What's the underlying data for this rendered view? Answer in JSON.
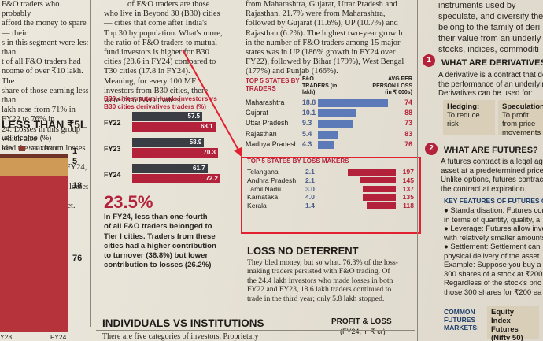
{
  "left_col": {
    "lines": [
      "F&O traders who probably",
      "afford the money to spare — their",
      "s in this segment were less than",
      "t of all F&O traders had",
      "ncome of over ₹10 lakh. The",
      "share of those earning less than",
      "lakh rose from 71% in FY22 to 76% in",
      "24. Losses in this group which also",
      "ided the maximum losses — 92.2% of",
      "their total losses in FY24, compared",
      "ith 88% in FY22 — losses in the",
      "lower income bracket."
    ],
    "heading": "LESS THAN ₹5L",
    "subheading": "ual income (%)",
    "legend_label": "5-10 lakh",
    "legend_prefix": "akh",
    "axis_values": [
      "1",
      "5",
      "18",
      "76"
    ],
    "x_labels": [
      "Y23",
      "FY24"
    ]
  },
  "mid_col": {
    "lines": [
      "who live in Beyond 30 (B30) cities",
      "— cities that come after India's",
      "Top 30 by population. What's more,",
      "the ratio of F&O traders to mutual",
      "fund investors is higher for B30",
      "cities (28.6 in FY24) compared to",
      "T30 cities (17.8 in FY24).",
      "Meaning, for every 100 MF",
      "investors from B30 cities, there",
      "were 28.6 F&O traders."
    ],
    "top_line": "of F&O traders are those",
    "chart_title_1": "B30 cities mutual funds investors vs",
    "chart_title_2": "B30 cities derivatives traders (%)",
    "big_stat": "23.5%",
    "stat_text": [
      "In FY24, less than one-fourth",
      "of all F&O traders belonged to",
      "Tier I cities. Traders from these",
      "cities had a higher contribution",
      "to turnover (36.8%) but lower",
      "contribution to losses (26.2%)"
    ]
  },
  "mf_chart": {
    "categories": [
      "FY22",
      "FY23",
      "FY24"
    ],
    "mf_values": [
      57.5,
      58.9,
      61.7
    ],
    "deriv_values": [
      68.1,
      70.3,
      72.2
    ]
  },
  "right_text": {
    "lines": [
      "from Maharashtra, Gujarat, Uttar Pradesh and",
      "Rajasthan. 21.7% were from Maharashtra,",
      "followed by Gujarat (11.6%), UP (10.7%) and",
      "Rajasthan (6.2%). The highest two-year growth",
      "in the number of F&O traders among 15 major",
      "states was in UP (186% growth in FY24 over",
      "FY22), followed by Bihar (179%), West Bengal",
      "(177%) and Punjab (166%)."
    ]
  },
  "traders_table": {
    "title": "TOP 5 STATES BY TRADERS",
    "col1": "F&O TRADERS (in lakh)",
    "col2": "AVG PER PERSON LOSS (in ₹ 000s)",
    "rows": [
      {
        "state": "Maharashtra",
        "traders": "18.8",
        "loss": "74"
      },
      {
        "state": "Gujarat",
        "traders": "10.1",
        "loss": "88"
      },
      {
        "state": "Uttar Pradesh",
        "traders": "9.3",
        "loss": "73"
      },
      {
        "state": "Rajasthan",
        "traders": "5.4",
        "loss": "83"
      },
      {
        "state": "Madhya Pradesh",
        "traders": "4.3",
        "loss": "76"
      }
    ]
  },
  "loss_table": {
    "title": "TOP 5 STATES BY LOSS MAKERS",
    "rows": [
      {
        "state": "Telangana",
        "traders": "2.1",
        "loss": "197"
      },
      {
        "state": "Andhra Pradesh",
        "traders": "2.1",
        "loss": "145"
      },
      {
        "state": "Tamil Nadu",
        "traders": "3.0",
        "loss": "137"
      },
      {
        "state": "Karnataka",
        "traders": "4.0",
        "loss": "135"
      },
      {
        "state": "Kerala",
        "traders": "1.4",
        "loss": "118"
      }
    ]
  },
  "deterrent": {
    "heading": "LOSS NO DETERRENT",
    "lines": [
      "They bled money, but so what. 76.3% of the loss-",
      "making traders persisted with F&O trading. Of",
      "the 24.4 lakh investors who made losses in both",
      "FY22 and FY23, 18.6 lakh traders continued to",
      "trade in the third year; only 5.8 lakh stopped."
    ]
  },
  "bottom": {
    "heading": "INDIVIDUALS VS INSTITUTIONS",
    "line": "There are five categories of  investors. Proprietary",
    "pl_title": "PROFIT & LOSS",
    "pl_sub": "(FY24, in ₹ cr)"
  },
  "far_right": {
    "top_lines": [
      "instruments used by",
      "speculate, and diversify the",
      "belong to the family of deri",
      "their value from an underly",
      "stocks, indices, commoditi"
    ],
    "q1_num": "1",
    "q1": "WHAT ARE DERIVATIVES?",
    "q1_lines": [
      "A derivative is a contract that de",
      "the performance of an underlyin",
      "Derivatives can be used for:"
    ],
    "hedging_title": "Hedging:",
    "hedging_text": "To reduce risk",
    "spec_title": "Speculation:",
    "spec_text": "To profit from price movements",
    "q2_num": "2",
    "q2": "WHAT ARE FUTURES?",
    "q2_lines": [
      "A futures contract is a legal ag",
      "asset at a predetermined price",
      "Unlike options, futures contrac",
      "the contract at expiration."
    ],
    "features_title": "KEY FEATURES OF FUTURES CO",
    "features": [
      "● Standardisation: Futures con",
      "in terms of quantity, quality, a",
      "● Leverage: Futures allow inves",
      "with relatively smaller amounts",
      "● Settlement: Settlement can",
      "physical delivery of the asset.",
      "Example: Suppose you buy a f",
      "300 shares of a stock at ₹200",
      "Regardless of the stock's pric",
      "those 300 shares for ₹200 ea"
    ],
    "markets_label": "COMMON FUTURES MARKETS:",
    "equity_label": "Equity Index Futures (Nifty 50)"
  }
}
